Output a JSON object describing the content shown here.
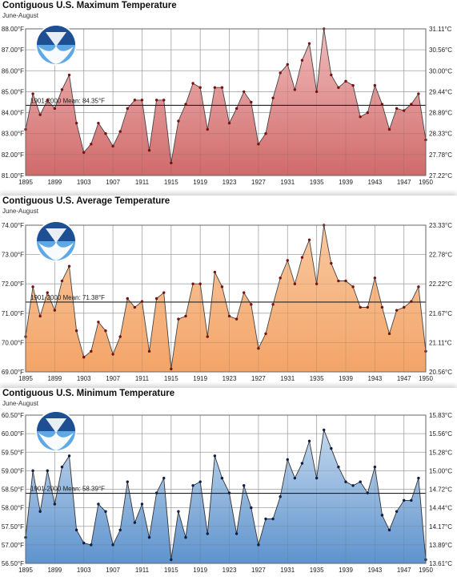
{
  "chart_data": [
    {
      "type": "area",
      "title": "Contiguous U.S. Maximum Temperature",
      "subtitle": "June-August",
      "x_ticks": [
        1895,
        1899,
        1903,
        1907,
        1911,
        1915,
        1919,
        1923,
        1927,
        1931,
        1935,
        1939,
        1943,
        1947,
        1950
      ],
      "ylim": [
        81.0,
        88.0
      ],
      "y_ticks": [
        "81.00°F",
        "82.00°F",
        "83.00°F",
        "84.00°F",
        "85.00°F",
        "86.00°F",
        "87.00°F",
        "88.00°F"
      ],
      "y2_ticks": [
        "27.22°C",
        "27.78°C",
        "28.33°C",
        "28.89°C",
        "29.44°C",
        "30.00°C",
        "30.56°C",
        "31.11°C"
      ],
      "mean_value": 84.35,
      "mean_label": "1901-2000 Mean: 84.35°F",
      "colors": {
        "fill_top": "#f2bcbc",
        "fill_bottom": "#d06a6a",
        "line": "#444444",
        "point": "#7a1010"
      },
      "x": [
        1895,
        1896,
        1897,
        1898,
        1899,
        1900,
        1901,
        1902,
        1903,
        1904,
        1905,
        1906,
        1907,
        1908,
        1909,
        1910,
        1911,
        1912,
        1913,
        1914,
        1915,
        1916,
        1917,
        1918,
        1919,
        1920,
        1921,
        1922,
        1923,
        1924,
        1925,
        1926,
        1927,
        1928,
        1929,
        1930,
        1931,
        1932,
        1933,
        1934,
        1935,
        1936,
        1937,
        1938,
        1939,
        1940,
        1941,
        1942,
        1943,
        1944,
        1945,
        1946,
        1947,
        1948,
        1949,
        1950
      ],
      "values": [
        83.2,
        84.9,
        83.9,
        84.6,
        84.2,
        85.1,
        85.8,
        83.5,
        82.1,
        82.5,
        83.5,
        83.0,
        82.4,
        83.1,
        84.2,
        84.6,
        84.6,
        82.2,
        84.6,
        84.6,
        81.6,
        83.6,
        84.4,
        85.4,
        85.2,
        83.2,
        85.2,
        85.2,
        83.5,
        84.2,
        85.0,
        84.5,
        82.5,
        83.0,
        84.7,
        85.9,
        86.3,
        85.1,
        86.5,
        87.3,
        85.0,
        88.0,
        85.8,
        85.2,
        85.5,
        85.3,
        83.8,
        84.0,
        85.3,
        84.4,
        83.2,
        84.2,
        84.1,
        84.4,
        84.9,
        82.7
      ]
    },
    {
      "type": "area",
      "title": "Contiguous U.S. Average Temperature",
      "subtitle": "June-August",
      "x_ticks": [
        1895,
        1899,
        1903,
        1907,
        1911,
        1915,
        1919,
        1923,
        1927,
        1931,
        1935,
        1939,
        1943,
        1947,
        1950
      ],
      "ylim": [
        69.0,
        74.0
      ],
      "y_ticks": [
        "69.00°F",
        "70.00°F",
        "71.00°F",
        "72.00°F",
        "73.00°F",
        "74.00°F"
      ],
      "y2_ticks": [
        "20.56°C",
        "21.11°C",
        "21.67°C",
        "22.22°C",
        "22.78°C",
        "23.33°C"
      ],
      "mean_value": 71.38,
      "mean_label": "1901-2000 Mean: 71.38°F",
      "colors": {
        "fill_top": "#f9c9a0",
        "fill_bottom": "#f3a467",
        "line": "#444444",
        "point": "#7a1010"
      },
      "x": [
        1895,
        1896,
        1897,
        1898,
        1899,
        1900,
        1901,
        1902,
        1903,
        1904,
        1905,
        1906,
        1907,
        1908,
        1909,
        1910,
        1911,
        1912,
        1913,
        1914,
        1915,
        1916,
        1917,
        1918,
        1919,
        1920,
        1921,
        1922,
        1923,
        1924,
        1925,
        1926,
        1927,
        1928,
        1929,
        1930,
        1931,
        1932,
        1933,
        1934,
        1935,
        1936,
        1937,
        1938,
        1939,
        1940,
        1941,
        1942,
        1943,
        1944,
        1945,
        1946,
        1947,
        1948,
        1949,
        1950
      ],
      "values": [
        70.2,
        71.9,
        70.9,
        71.7,
        71.1,
        72.1,
        72.6,
        70.4,
        69.5,
        69.7,
        70.7,
        70.4,
        69.6,
        70.2,
        71.5,
        71.2,
        71.4,
        69.7,
        71.5,
        71.7,
        69.1,
        70.8,
        70.9,
        72.0,
        72.0,
        70.2,
        72.4,
        71.9,
        70.9,
        70.8,
        71.7,
        71.3,
        69.8,
        70.3,
        71.3,
        72.2,
        72.8,
        72.0,
        72.9,
        73.5,
        72.0,
        74.0,
        72.7,
        72.1,
        72.1,
        71.9,
        71.2,
        71.2,
        72.2,
        71.2,
        70.3,
        71.1,
        71.2,
        71.4,
        71.9,
        69.7
      ]
    },
    {
      "type": "area",
      "title": "Contiguous U.S. Minimum Temperature",
      "subtitle": "June-August",
      "x_ticks": [
        1895,
        1899,
        1903,
        1907,
        1911,
        1915,
        1919,
        1923,
        1927,
        1931,
        1935,
        1939,
        1943,
        1947,
        1950
      ],
      "ylim": [
        56.5,
        60.5
      ],
      "y_ticks": [
        "56.50°F",
        "57.00°F",
        "57.50°F",
        "58.00°F",
        "58.50°F",
        "59.00°F",
        "59.50°F",
        "60.00°F",
        "60.50°F"
      ],
      "y2_ticks": [
        "13.61°C",
        "13.89°C",
        "14.17°C",
        "14.44°C",
        "14.72°C",
        "15.00°C",
        "15.28°C",
        "15.56°C",
        "15.83°C"
      ],
      "mean_value": 58.39,
      "mean_label": "1901-2000 Mean: 58.39°F",
      "colors": {
        "fill_top": "#c3d8ee",
        "fill_bottom": "#5e93cd",
        "line": "#333333",
        "point": "#0d1e4a"
      },
      "x": [
        1895,
        1896,
        1897,
        1898,
        1899,
        1900,
        1901,
        1902,
        1903,
        1904,
        1905,
        1906,
        1907,
        1908,
        1909,
        1910,
        1911,
        1912,
        1913,
        1914,
        1915,
        1916,
        1917,
        1918,
        1919,
        1920,
        1921,
        1922,
        1923,
        1924,
        1925,
        1926,
        1927,
        1928,
        1929,
        1930,
        1931,
        1932,
        1933,
        1934,
        1935,
        1936,
        1937,
        1938,
        1939,
        1940,
        1941,
        1942,
        1943,
        1944,
        1945,
        1946,
        1947,
        1948,
        1949,
        1950
      ],
      "values": [
        57.2,
        59.0,
        57.9,
        59.0,
        58.1,
        59.1,
        59.4,
        57.4,
        57.05,
        57.0,
        58.1,
        57.9,
        57.0,
        57.4,
        58.7,
        57.6,
        58.1,
        57.2,
        58.4,
        58.8,
        56.6,
        57.9,
        57.2,
        58.6,
        58.7,
        57.3,
        59.4,
        58.8,
        58.4,
        57.3,
        58.6,
        58.0,
        57.0,
        57.7,
        57.7,
        58.3,
        59.3,
        58.8,
        59.2,
        59.8,
        58.8,
        60.1,
        59.6,
        59.1,
        58.7,
        58.6,
        58.7,
        58.4,
        59.1,
        57.8,
        57.4,
        57.9,
        58.2,
        58.2,
        58.8,
        56.6
      ]
    }
  ]
}
